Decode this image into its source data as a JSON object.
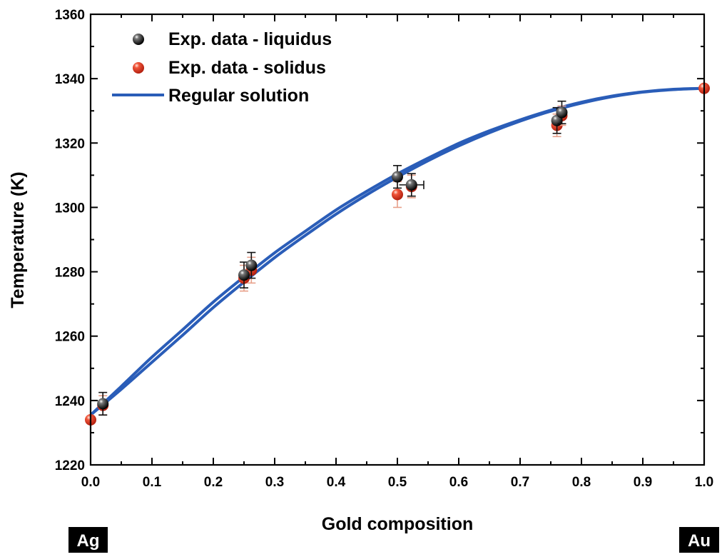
{
  "chart_data": {
    "type": "scatter",
    "xlabel": "Gold composition",
    "ylabel": "Temperature (K)",
    "xlim": [
      0.0,
      1.0
    ],
    "ylim": [
      1220,
      1360
    ],
    "xticks": [
      "0.0",
      "0.1",
      "0.2",
      "0.3",
      "0.4",
      "0.5",
      "0.6",
      "0.7",
      "0.8",
      "0.9",
      "1.0"
    ],
    "yticks": [
      "1220",
      "1240",
      "1260",
      "1280",
      "1300",
      "1320",
      "1340",
      "1360"
    ],
    "grid": false,
    "legend_position": "top-left",
    "endpoint_labels": {
      "left": "Ag",
      "right": "Au"
    },
    "series": [
      {
        "name": "Exp. data - liquidus",
        "marker": "sphere",
        "color": "#111111",
        "points": [
          {
            "x": 0.02,
            "y": 1239,
            "yerr": 3.5
          },
          {
            "x": 0.25,
            "y": 1279,
            "yerr": 4
          },
          {
            "x": 0.262,
            "y": 1282,
            "yerr": 4
          },
          {
            "x": 0.5,
            "y": 1309.5,
            "yerr": 3.5
          },
          {
            "x": 0.523,
            "y": 1307,
            "yerr": 3.5,
            "xerr": 0.02
          },
          {
            "x": 0.76,
            "y": 1327,
            "yerr": 4
          },
          {
            "x": 0.768,
            "y": 1329.5,
            "yerr": 3.5
          }
        ]
      },
      {
        "name": "Exp. data - solidus",
        "marker": "sphere",
        "color": "#e8402a",
        "points": [
          {
            "x": 0.0,
            "y": 1234
          },
          {
            "x": 0.02,
            "y": 1238.5,
            "yerr": 3
          },
          {
            "x": 0.25,
            "y": 1278,
            "yerr": 4
          },
          {
            "x": 0.262,
            "y": 1280.5,
            "yerr": 4
          },
          {
            "x": 0.5,
            "y": 1304,
            "yerr": 4
          },
          {
            "x": 0.523,
            "y": 1306.5,
            "yerr": 3.5
          },
          {
            "x": 0.76,
            "y": 1325.5,
            "yerr": 3.5
          },
          {
            "x": 0.768,
            "y": 1328.5,
            "yerr": 3
          },
          {
            "x": 1.0,
            "y": 1337
          }
        ]
      },
      {
        "name": "Regular solution",
        "type": "line",
        "color": "#2a5db8",
        "curves": [
          {
            "x": [
              0.0,
              0.05,
              0.1,
              0.15,
              0.2,
              0.25,
              0.3,
              0.35,
              0.4,
              0.45,
              0.5,
              0.55,
              0.6,
              0.65,
              0.7,
              0.75,
              0.8,
              0.85,
              0.9,
              0.95,
              1.0
            ],
            "y": [
              1235.5,
              1244.4,
              1253.5,
              1262.0,
              1270.6,
              1278.4,
              1285.9,
              1292.6,
              1299.2,
              1305.0,
              1310.4,
              1315.3,
              1319.9,
              1323.8,
              1327.2,
              1330.2,
              1332.7,
              1334.6,
              1335.9,
              1336.7,
              1337.0
            ]
          },
          {
            "x": [
              0.0,
              0.05,
              0.1,
              0.15,
              0.2,
              0.25,
              0.3,
              0.35,
              0.4,
              0.45,
              0.5,
              0.55,
              0.6,
              0.65,
              0.7,
              0.75,
              0.8,
              0.85,
              0.9,
              0.95,
              1.0
            ],
            "y": [
              1235.5,
              1243.5,
              1251.9,
              1260.3,
              1268.9,
              1276.8,
              1284.4,
              1291.3,
              1297.9,
              1303.9,
              1309.4,
              1314.5,
              1319.1,
              1323.2,
              1326.8,
              1329.9,
              1332.4,
              1334.4,
              1335.8,
              1336.6,
              1337.0
            ]
          }
        ]
      }
    ]
  }
}
